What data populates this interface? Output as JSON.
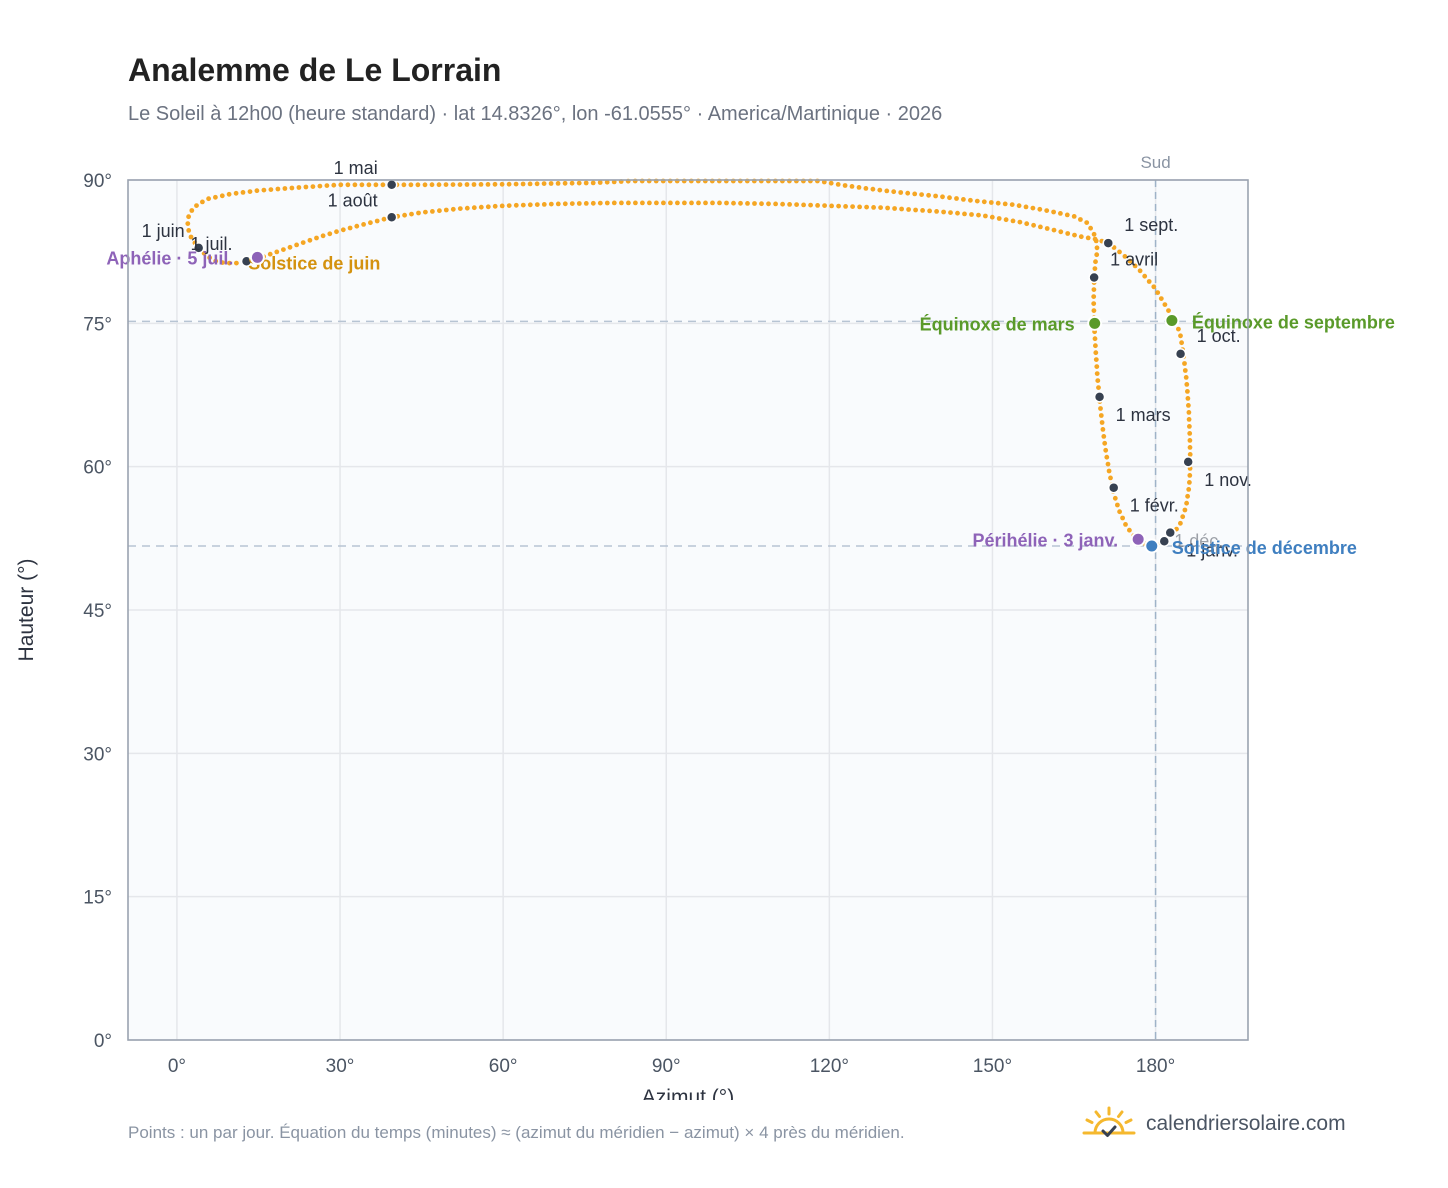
{
  "header": {
    "title": "Analemme de Le Lorrain",
    "subtitle": "Le Soleil à 12h00 (heure standard) · lat 14.8326°, lon -61.0555° · America/Martinique · 2026"
  },
  "footer": {
    "note": "Points : un par jour. Équation du temps (minutes) ≈ (azimut du méridien − azimut) × 4 près du méridien.",
    "brand": "calendriersolaire.com"
  },
  "colors": {
    "curve": "#f5a623",
    "month_dot": "#374151",
    "equinox": "#5a9a2a",
    "solstice_june": "#d4920f",
    "solstice_december": "#3f7fc0",
    "perihelion": "#8e63b8",
    "grid": "#e5e7eb",
    "plot_bg": "#f9fbfd",
    "axis": "#9ca3af"
  },
  "chart_data": {
    "type": "scatter",
    "xlabel": "Azimut (°)",
    "ylabel": "Hauteur (°)",
    "xlim": [
      -9,
      197
    ],
    "ylim": [
      0,
      90
    ],
    "x_ticks": [
      0,
      30,
      60,
      90,
      120,
      150,
      180
    ],
    "x_tick_labels": [
      "0°",
      "30°",
      "60°",
      "90°",
      "120°",
      "150°",
      "180°"
    ],
    "y_ticks": [
      0,
      15,
      30,
      45,
      60,
      75,
      90
    ],
    "y_tick_labels": [
      "0°",
      "15°",
      "30°",
      "45°",
      "60°",
      "75°",
      "90°"
    ],
    "grid": true,
    "reference_lines": {
      "meridian_azimuth": 180,
      "meridian_label": "Sud",
      "equinox_altitude": 75.2,
      "december_solstice_altitude": 51.7
    },
    "analemma_path": [
      [
        179.3,
        51.8
      ],
      [
        177.6,
        52.0
      ],
      [
        176.2,
        52.6
      ],
      [
        174.6,
        53.8
      ],
      [
        173.3,
        55.4
      ],
      [
        172.3,
        57.2
      ],
      [
        171.5,
        59.4
      ],
      [
        170.8,
        61.8
      ],
      [
        170.2,
        64.4
      ],
      [
        169.7,
        67.0
      ],
      [
        169.3,
        69.5
      ],
      [
        169.0,
        72.0
      ],
      [
        168.8,
        74.0
      ],
      [
        168.7,
        75.2
      ],
      [
        168.6,
        77.5
      ],
      [
        168.7,
        79.5
      ],
      [
        168.9,
        81.3
      ],
      [
        169.3,
        82.6
      ],
      [
        169.0,
        84.0
      ],
      [
        167.5,
        85.5
      ],
      [
        165.0,
        86.2
      ],
      [
        160.0,
        86.8
      ],
      [
        154.0,
        87.4
      ],
      [
        147.0,
        87.8
      ],
      [
        140.0,
        88.3
      ],
      [
        133.0,
        88.7
      ],
      [
        127.0,
        89.1
      ],
      [
        122.0,
        89.5
      ],
      [
        118.0,
        89.9
      ],
      [
        84.0,
        89.9
      ],
      [
        76.5,
        89.7
      ],
      [
        60.0,
        89.55
      ],
      [
        45.0,
        89.5
      ],
      [
        39.5,
        89.5
      ],
      [
        30.0,
        89.5
      ],
      [
        22.0,
        89.2
      ],
      [
        15.0,
        88.9
      ],
      [
        10.0,
        88.55
      ],
      [
        5.5,
        88.0
      ],
      [
        3.0,
        87.1
      ],
      [
        2.0,
        86.0
      ],
      [
        2.0,
        85.0
      ],
      [
        2.6,
        84.0
      ],
      [
        3.8,
        83.0
      ],
      [
        5.6,
        82.0
      ],
      [
        7.5,
        81.4
      ],
      [
        9.3,
        81.3
      ],
      [
        11.0,
        81.3
      ],
      [
        13.0,
        81.5
      ],
      [
        15.0,
        81.8
      ],
      [
        18.0,
        82.4
      ],
      [
        22.0,
        83.2
      ],
      [
        26.0,
        84.0
      ],
      [
        30.0,
        84.7
      ],
      [
        34.0,
        85.3
      ],
      [
        39.5,
        86.1
      ],
      [
        45.0,
        86.6
      ],
      [
        52.0,
        87.0
      ],
      [
        60.0,
        87.3
      ],
      [
        70.0,
        87.5
      ],
      [
        80.0,
        87.6
      ],
      [
        90.0,
        87.6
      ],
      [
        100.0,
        87.6
      ],
      [
        110.0,
        87.5
      ],
      [
        120.0,
        87.3
      ],
      [
        130.0,
        87.1
      ],
      [
        140.0,
        86.7
      ],
      [
        148.0,
        86.3
      ],
      [
        155.0,
        85.6
      ],
      [
        161.0,
        84.8
      ],
      [
        166.0,
        84.1
      ],
      [
        169.0,
        83.8
      ],
      [
        171.3,
        83.4
      ],
      [
        174.0,
        82.2
      ],
      [
        177.0,
        80.6
      ],
      [
        180.0,
        78.6
      ],
      [
        182.2,
        76.5
      ],
      [
        183.5,
        75.3
      ],
      [
        184.5,
        74.0
      ],
      [
        185.1,
        71.8
      ],
      [
        185.7,
        69.0
      ],
      [
        186.1,
        66.0
      ],
      [
        186.3,
        63.0
      ],
      [
        186.4,
        60.5
      ],
      [
        186.2,
        58.0
      ],
      [
        185.6,
        55.8
      ],
      [
        184.6,
        54.1
      ],
      [
        183.3,
        53.0
      ],
      [
        181.6,
        52.2
      ],
      [
        179.8,
        51.75
      ]
    ],
    "month_markers": [
      {
        "label": "1 janv.",
        "azimuth": 182.7,
        "altitude": 53.1,
        "label_pos": "below-right"
      },
      {
        "label": "1 févr.",
        "azimuth": 172.3,
        "altitude": 57.8,
        "label_pos": "below-right"
      },
      {
        "label": "1 mars",
        "azimuth": 169.7,
        "altitude": 67.3,
        "label_pos": "below-right"
      },
      {
        "label": "1 avril",
        "azimuth": 168.7,
        "altitude": 79.8,
        "label_pos": "above-right"
      },
      {
        "label": "1 mai",
        "azimuth": 39.5,
        "altitude": 89.5,
        "label_pos": "above-left"
      },
      {
        "label": "1 juin",
        "azimuth": 4.0,
        "altitude": 82.9,
        "label_pos": "above-left"
      },
      {
        "label": "1 juil.",
        "azimuth": 12.8,
        "altitude": 81.5,
        "label_pos": "above-left"
      },
      {
        "label": "1 août",
        "azimuth": 39.5,
        "altitude": 86.1,
        "label_pos": "above-left"
      },
      {
        "label": "1 sept.",
        "azimuth": 171.3,
        "altitude": 83.4,
        "label_pos": "above-right"
      },
      {
        "label": "1 oct.",
        "azimuth": 184.6,
        "altitude": 71.8,
        "label_pos": "above-right"
      },
      {
        "label": "1 nov.",
        "azimuth": 186.0,
        "altitude": 60.5,
        "label_pos": "below-right"
      },
      {
        "label": "1 déc.",
        "azimuth": 181.6,
        "altitude": 52.2,
        "label_pos": "right-faint"
      }
    ],
    "events": [
      {
        "label": "Équinoxe de mars",
        "azimuth": 168.8,
        "altitude": 75.0,
        "color_key": "equinox",
        "label_pos": "left"
      },
      {
        "label": "Équinoxe de septembre",
        "azimuth": 183.0,
        "altitude": 75.3,
        "color_key": "equinox",
        "label_pos": "right"
      },
      {
        "label": "Solstice de juin",
        "azimuth": 14.6,
        "altitude": 81.9,
        "color_key": "solstice_june",
        "label_pos": "below-right"
      },
      {
        "label": "Solstice de décembre",
        "azimuth": 179.3,
        "altitude": 51.7,
        "color_key": "solstice_december",
        "label_pos": "right"
      },
      {
        "label": "Aphélie · 5 juil.",
        "azimuth": 14.8,
        "altitude": 81.9,
        "color_key": "perihelion",
        "label_pos": "far-left"
      },
      {
        "label": "Périhélie · 3 janv.",
        "azimuth": 176.8,
        "altitude": 52.4,
        "color_key": "perihelion",
        "label_pos": "left"
      }
    ]
  }
}
